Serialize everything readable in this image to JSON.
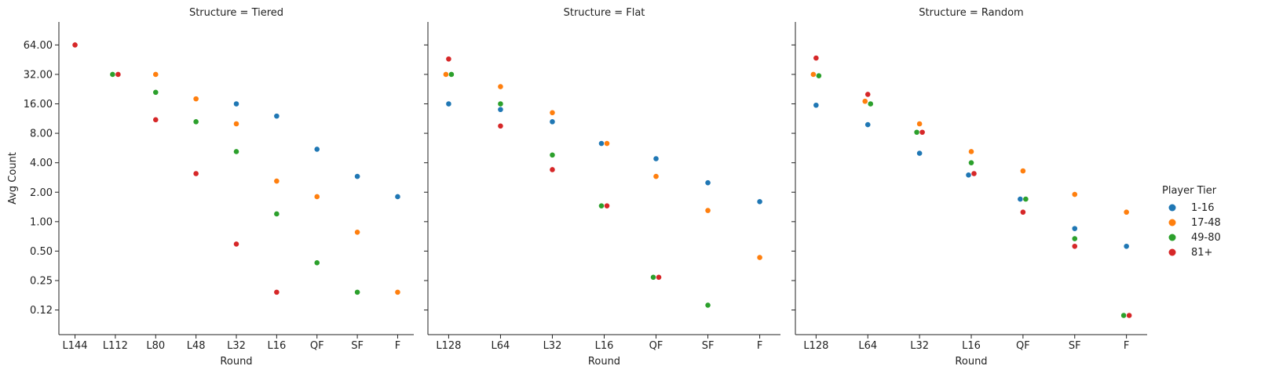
{
  "chart_data": {
    "type": "scatter",
    "y_scale": "log2",
    "ylabel": "Avg Count",
    "y_ticks": [
      "64.00",
      "32.00",
      "16.00",
      "8.00",
      "4.00",
      "2.00",
      "1.00",
      "0.50",
      "0.25",
      "0.12"
    ],
    "y_tick_values": [
      64,
      32,
      16,
      8,
      4,
      2,
      1,
      0.5,
      0.25,
      0.125
    ],
    "ylim": [
      0.07,
      110
    ],
    "grid": false,
    "legend": {
      "title": "Player Tier",
      "placement": "right",
      "entries": [
        {
          "label": "1-16",
          "color": "#1f77b4"
        },
        {
          "label": "17-48",
          "color": "#ff7f0e"
        },
        {
          "label": "49-80",
          "color": "#2ca02c"
        },
        {
          "label": "81+",
          "color": "#d62728"
        }
      ]
    },
    "panels": [
      {
        "title": "Structure = Tiered",
        "xlabel": "Round",
        "categories": [
          "L144",
          "L112",
          "L80",
          "L48",
          "L32",
          "L16",
          "QF",
          "SF",
          "F"
        ],
        "series": [
          {
            "name": "1-16",
            "values": [
              null,
              null,
              null,
              null,
              16,
              12,
              5.5,
              2.9,
              1.8
            ]
          },
          {
            "name": "17-48",
            "values": [
              null,
              null,
              32,
              18,
              10,
              2.6,
              1.8,
              0.78,
              0.19
            ]
          },
          {
            "name": "49-80",
            "values": [
              null,
              32,
              21,
              10.5,
              5.2,
              1.2,
              0.38,
              0.19,
              null
            ]
          },
          {
            "name": "81+",
            "values": [
              64,
              32,
              11,
              3.1,
              0.59,
              0.19,
              null,
              null,
              null
            ]
          }
        ]
      },
      {
        "title": "Structure = Flat",
        "xlabel": "Round",
        "categories": [
          "L128",
          "L64",
          "L32",
          "L16",
          "QF",
          "SF",
          "F"
        ],
        "series": [
          {
            "name": "1-16",
            "values": [
              16,
              14,
              10.5,
              6.3,
              4.4,
              2.5,
              1.6
            ]
          },
          {
            "name": "17-48",
            "values": [
              32,
              24,
              13,
              6.3,
              2.9,
              1.3,
              0.43
            ]
          },
          {
            "name": "49-80",
            "values": [
              32,
              16,
              4.8,
              1.45,
              0.27,
              0.14,
              null
            ]
          },
          {
            "name": "81+",
            "values": [
              46,
              9.5,
              3.4,
              1.45,
              0.27,
              null,
              null
            ]
          }
        ]
      },
      {
        "title": "Structure = Random",
        "xlabel": "Round",
        "categories": [
          "L128",
          "L64",
          "L32",
          "L16",
          "QF",
          "SF",
          "F"
        ],
        "series": [
          {
            "name": "1-16",
            "values": [
              15.5,
              9.8,
              5,
              3,
              1.7,
              0.85,
              0.56
            ]
          },
          {
            "name": "17-48",
            "values": [
              32,
              17,
              10,
              5.2,
              3.3,
              1.9,
              1.25
            ]
          },
          {
            "name": "49-80",
            "values": [
              31,
              16,
              8.2,
              4,
              1.7,
              0.67,
              0.11
            ]
          },
          {
            "name": "81+",
            "values": [
              47,
              20,
              8.2,
              3.1,
              1.25,
              0.56,
              0.11
            ]
          }
        ]
      }
    ]
  }
}
